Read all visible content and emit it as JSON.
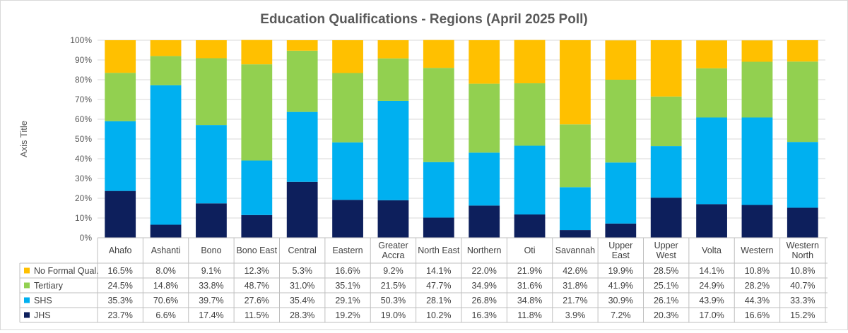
{
  "chart_data": {
    "type": "bar",
    "stacked": true,
    "percent": true,
    "title": "Education Qualifications - Regions (April 2025 Poll)",
    "xlabel": "",
    "ylabel": "Axis Title",
    "ylim": [
      0,
      100
    ],
    "yticks": [
      "0%",
      "10%",
      "20%",
      "30%",
      "40%",
      "50%",
      "60%",
      "70%",
      "80%",
      "90%",
      "100%"
    ],
    "categories": [
      [
        "Ahafo"
      ],
      [
        "Ashanti"
      ],
      [
        "Bono"
      ],
      [
        "Bono East"
      ],
      [
        "Central"
      ],
      [
        "Eastern"
      ],
      [
        "Greater",
        "Accra"
      ],
      [
        "North East"
      ],
      [
        "Northern"
      ],
      [
        "Oti"
      ],
      [
        "Savannah"
      ],
      [
        "Upper",
        "East"
      ],
      [
        "Upper",
        "West"
      ],
      [
        "Volta"
      ],
      [
        "Western"
      ],
      [
        "Western",
        "North"
      ]
    ],
    "series": [
      {
        "name": "JHS",
        "color": "#0d1f5c",
        "values": [
          23.7,
          6.6,
          17.4,
          11.5,
          28.3,
          19.2,
          19.0,
          10.2,
          16.3,
          11.8,
          3.9,
          7.2,
          20.3,
          17.0,
          16.6,
          15.2
        ],
        "labels": [
          "23.7%",
          "6.6%",
          "17.4%",
          "11.5%",
          "28.3%",
          "19.2%",
          "19.0%",
          "10.2%",
          "16.3%",
          "11.8%",
          "3.9%",
          "7.2%",
          "20.3%",
          "17.0%",
          "16.6%",
          "15.2%"
        ]
      },
      {
        "name": "SHS",
        "color": "#00b0f0",
        "values": [
          35.3,
          70.6,
          39.7,
          27.6,
          35.4,
          29.1,
          50.3,
          28.1,
          26.8,
          34.8,
          21.7,
          30.9,
          26.1,
          43.9,
          44.3,
          33.3
        ],
        "labels": [
          "35.3%",
          "70.6%",
          "39.7%",
          "27.6%",
          "35.4%",
          "29.1%",
          "50.3%",
          "28.1%",
          "26.8%",
          "34.8%",
          "21.7%",
          "30.9%",
          "26.1%",
          "43.9%",
          "44.3%",
          "33.3%"
        ]
      },
      {
        "name": "Tertiary",
        "color": "#92d050",
        "values": [
          24.5,
          14.8,
          33.8,
          48.7,
          31.0,
          35.1,
          21.5,
          47.7,
          34.9,
          31.6,
          31.8,
          41.9,
          25.1,
          24.9,
          28.2,
          40.7
        ],
        "labels": [
          "24.5%",
          "14.8%",
          "33.8%",
          "48.7%",
          "31.0%",
          "35.1%",
          "21.5%",
          "47.7%",
          "34.9%",
          "31.6%",
          "31.8%",
          "41.9%",
          "25.1%",
          "24.9%",
          "28.2%",
          "40.7%"
        ]
      },
      {
        "name": "No Formal Qual.",
        "color": "#ffc000",
        "values": [
          16.5,
          8.0,
          9.1,
          12.3,
          5.3,
          16.6,
          9.2,
          14.1,
          22.0,
          21.9,
          42.6,
          19.9,
          28.5,
          14.1,
          10.8,
          10.8
        ],
        "labels": [
          "16.5%",
          "8.0%",
          "9.1%",
          "12.3%",
          "5.3%",
          "16.6%",
          "9.2%",
          "14.1%",
          "22.0%",
          "21.9%",
          "42.6%",
          "19.9%",
          "28.5%",
          "14.1%",
          "10.8%",
          "10.8%"
        ]
      }
    ],
    "table_row_order": [
      "No Formal Qual.",
      "Tertiary",
      "SHS",
      "JHS"
    ],
    "gridlines": true,
    "legend": "data-table-left"
  }
}
